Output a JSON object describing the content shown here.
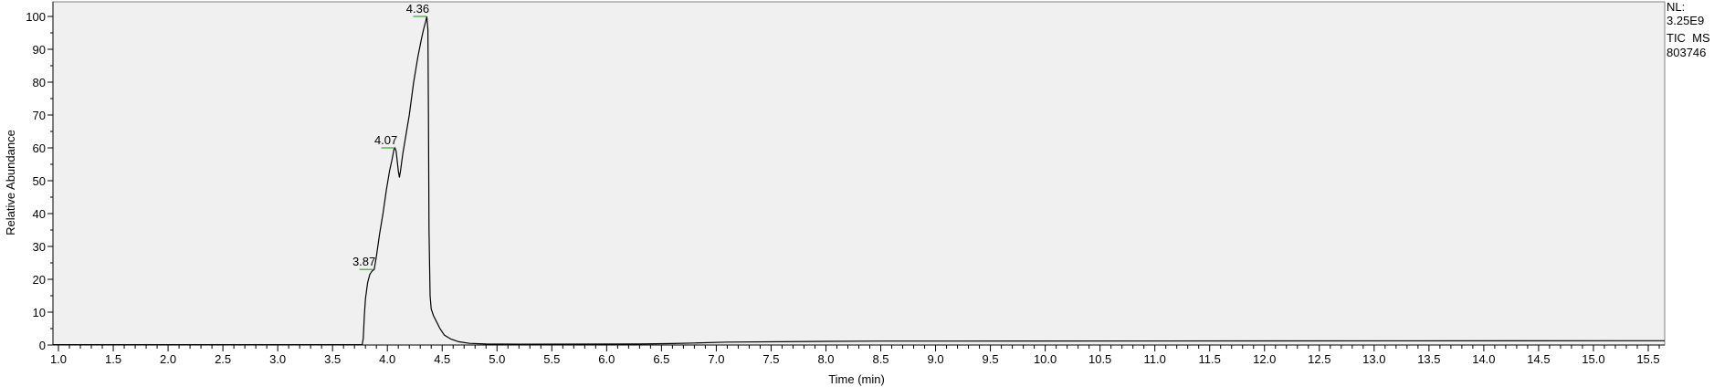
{
  "chart_data": {
    "type": "line",
    "xlabel": "Time (min)",
    "ylabel": "Relative Abundance",
    "xlim": [
      0.95,
      15.65
    ],
    "ylim": [
      0,
      100
    ],
    "x_ticks": [
      1.0,
      1.5,
      2.0,
      2.5,
      3.0,
      3.5,
      4.0,
      4.5,
      5.0,
      5.5,
      6.0,
      6.5,
      7.0,
      7.5,
      8.0,
      8.5,
      9.0,
      9.5,
      10.0,
      10.5,
      11.0,
      11.5,
      12.0,
      12.5,
      13.0,
      13.5,
      14.0,
      14.5,
      15.0,
      15.5
    ],
    "y_ticks": [
      0,
      10,
      20,
      30,
      40,
      50,
      60,
      70,
      80,
      90,
      100
    ],
    "grid": false,
    "background": "#f0f0f0",
    "series": [
      {
        "color": "#000000",
        "x": [
          0.95,
          3.77,
          3.78,
          3.79,
          3.8,
          3.82,
          3.84,
          3.86,
          3.88,
          3.9,
          3.93,
          3.96,
          3.99,
          4.02,
          4.04,
          4.06,
          4.07,
          4.08,
          4.09,
          4.1,
          4.11,
          4.12,
          4.14,
          4.17,
          4.2,
          4.24,
          4.28,
          4.31,
          4.33,
          4.35,
          4.36,
          4.37,
          4.375,
          4.38,
          4.39,
          4.4,
          4.42,
          4.45,
          4.48,
          4.52,
          4.58,
          4.65,
          4.75,
          4.9,
          5.2,
          6.3,
          6.6,
          6.8,
          7.1,
          8.0,
          8.5,
          9.0,
          15.65
        ],
        "y": [
          0.1,
          0.1,
          2,
          9,
          14,
          19,
          21.5,
          22.5,
          23,
          27,
          34,
          40,
          47,
          53,
          56,
          59.5,
          60,
          59,
          56,
          53,
          51,
          53,
          58,
          64,
          70,
          80,
          88,
          93,
          96,
          98.5,
          100,
          96,
          70,
          35,
          15,
          11,
          9,
          7,
          5,
          3,
          1.8,
          1.0,
          0.5,
          0.3,
          0.25,
          0.3,
          0.45,
          0.6,
          0.9,
          1.1,
          1.2,
          1.2,
          1.3
        ]
      }
    ],
    "peak_labels": [
      {
        "x": 4.36,
        "y": 100,
        "label": "4.36"
      },
      {
        "x": 4.07,
        "y": 60,
        "label": "4.07"
      },
      {
        "x": 3.87,
        "y": 23,
        "label": "3.87"
      }
    ]
  },
  "side_info": {
    "nl_label": "NL:",
    "nl_value": "3.25E9",
    "filter": "TIC  MS",
    "file": "803746"
  }
}
